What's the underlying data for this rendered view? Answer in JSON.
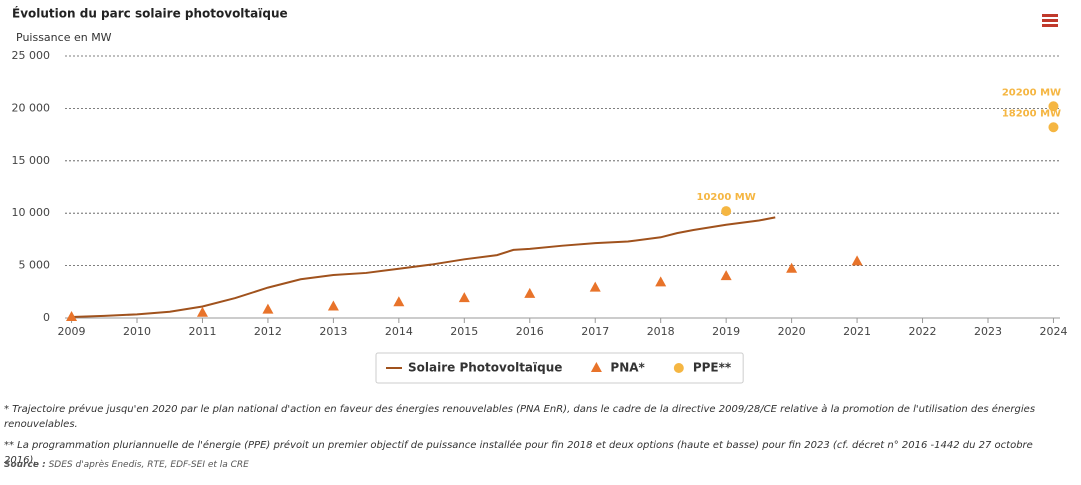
{
  "chart_data": {
    "type": "line",
    "title": "Évolution du parc solaire photovoltaïque",
    "y_label": "Puissance en MW",
    "xlim": [
      2008.9,
      2024.1
    ],
    "xticks": [
      2009,
      2010,
      2011,
      2012,
      2013,
      2014,
      2015,
      2016,
      2017,
      2018,
      2019,
      2020,
      2021,
      2022,
      2023,
      2024
    ],
    "ylim": [
      0,
      25000
    ],
    "yticks": [
      0,
      {
        "value": 5000,
        "label": "5 000"
      },
      {
        "value": 10000,
        "label": "10 000"
      },
      {
        "value": 15000,
        "label": "15 000"
      },
      {
        "value": 20000,
        "label": "20 000"
      },
      {
        "value": 25000,
        "label": "25 000"
      }
    ],
    "grid": true,
    "legend": "bottom",
    "series": [
      {
        "name": "Solaire Photovoltaïque",
        "type": "line",
        "color": "#a0521d",
        "x": [
          2009,
          2009.5,
          2010,
          2010.5,
          2011,
          2011.5,
          2012,
          2012.5,
          2013,
          2013.5,
          2014,
          2014.5,
          2015,
          2015.5,
          2015.75,
          2016,
          2016.5,
          2017,
          2017.5,
          2018,
          2018.25,
          2018.5,
          2019,
          2019.5,
          2019.75
        ],
        "values": [
          100,
          200,
          350,
          600,
          1100,
          1900,
          2900,
          3700,
          4100,
          4300,
          4700,
          5100,
          5600,
          6000,
          6500,
          6600,
          6900,
          7150,
          7300,
          7700,
          8100,
          8400,
          8900,
          9300,
          9600
        ]
      },
      {
        "name": "PNA*",
        "type": "scatter",
        "marker": "triangle",
        "color": "#e8732a",
        "x": [
          2009,
          2011,
          2012,
          2013,
          2014,
          2015,
          2016,
          2017,
          2018,
          2019,
          2020,
          2021
        ],
        "values": [
          100,
          500,
          800,
          1100,
          1500,
          1900,
          2300,
          2900,
          3400,
          4000,
          4700,
          5400
        ]
      },
      {
        "name": "PPE**",
        "type": "scatter",
        "marker": "circle",
        "color": "#f5b642",
        "x": [
          2019,
          2024,
          2024
        ],
        "values": [
          10200,
          20200,
          18200
        ],
        "value_labels": [
          "10200 MW",
          "20200 MW",
          "18200 MW"
        ]
      }
    ],
    "footnotes": [
      "* Trajectoire prévue jusqu'en 2020 par le plan national d'action en faveur des énergies renouvelables (PNA EnR), dans le cadre de la directive 2009/28/CE relative à la promotion de l'utilisation des énergies renouvelables.",
      "** La programmation pluriannuelle de l'énergie (PPE) prévoit un premier objectif de puissance installée pour fin 2018 et deux options (haute et basse) pour fin 2023 (cf. décret n° 2016 -1442 du 27 octobre 2016)."
    ],
    "source_label": "Source :",
    "source_text": "SDES d'après Enedis, RTE, EDF-SEI et la CRE"
  }
}
